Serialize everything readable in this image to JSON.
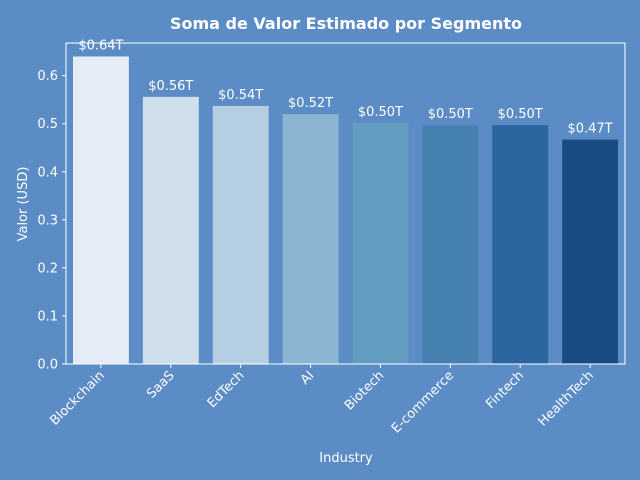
{
  "chart_data": {
    "type": "bar",
    "title": "Soma de Valor Estimado por Segmento",
    "xlabel": "Industry",
    "ylabel": "Valor (USD)",
    "categories": [
      "Blockchain",
      "SaaS",
      "EdTech",
      "AI",
      "Biotech",
      "E-commerce",
      "Fintech",
      "HealthTech"
    ],
    "values": [
      0.64,
      0.556,
      0.537,
      0.52,
      0.502,
      0.497,
      0.497,
      0.467
    ],
    "data_labels": [
      "$0.64T",
      "$0.56T",
      "$0.54T",
      "$0.52T",
      "$0.50T",
      "$0.50T",
      "$0.50T",
      "$0.47T"
    ],
    "yticks": [
      0.0,
      0.1,
      0.2,
      0.3,
      0.4,
      0.5,
      0.6
    ],
    "ytick_labels": [
      "0.0",
      "0.1",
      "0.2",
      "0.3",
      "0.4",
      "0.5",
      "0.6"
    ],
    "ylim": [
      0,
      0.668
    ],
    "grid": false,
    "colors": {
      "background": "#5b8cc5",
      "axes": "#ffffff",
      "text": "#ffffff",
      "bars": [
        "#e4ecf6",
        "#cfdfec",
        "#b4cfe1",
        "#8cb5d1",
        "#629dc0",
        "#4681b0",
        "#2b66a0",
        "#1b4b83"
      ]
    }
  }
}
